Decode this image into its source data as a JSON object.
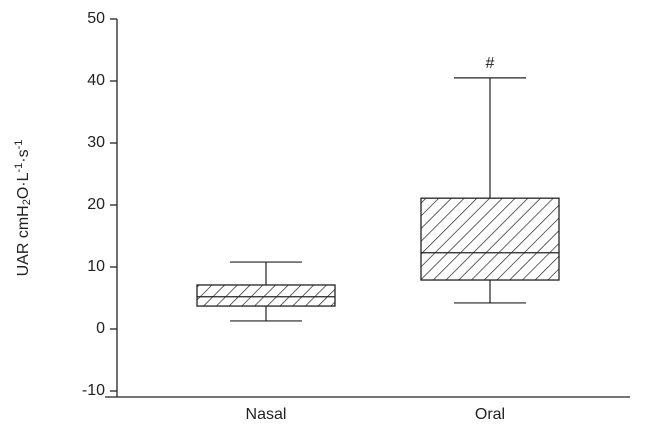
{
  "chart_data": {
    "type": "box",
    "ylabel": [
      {
        "text": "UAR cmH"
      },
      {
        "text": "2",
        "script": "sub"
      },
      {
        "text": "O·L"
      },
      {
        "text": "-1",
        "script": "sup"
      },
      {
        "text": "·s"
      },
      {
        "text": "-1",
        "script": "sup"
      }
    ],
    "categories": [
      "Nasal",
      "Oral"
    ],
    "boxes": [
      {
        "min": 1.3,
        "q1": 3.7,
        "median": 5.2,
        "q3": 7.1,
        "max": 10.8
      },
      {
        "min": 4.2,
        "q1": 7.9,
        "median": 12.3,
        "q3": 21.1,
        "max": 40.5,
        "annotation": "#"
      }
    ],
    "ylim": [
      -10,
      50
    ],
    "yticks": [
      -10,
      0,
      10,
      20,
      30,
      40,
      50
    ],
    "hatch": true,
    "color": "#222222"
  }
}
